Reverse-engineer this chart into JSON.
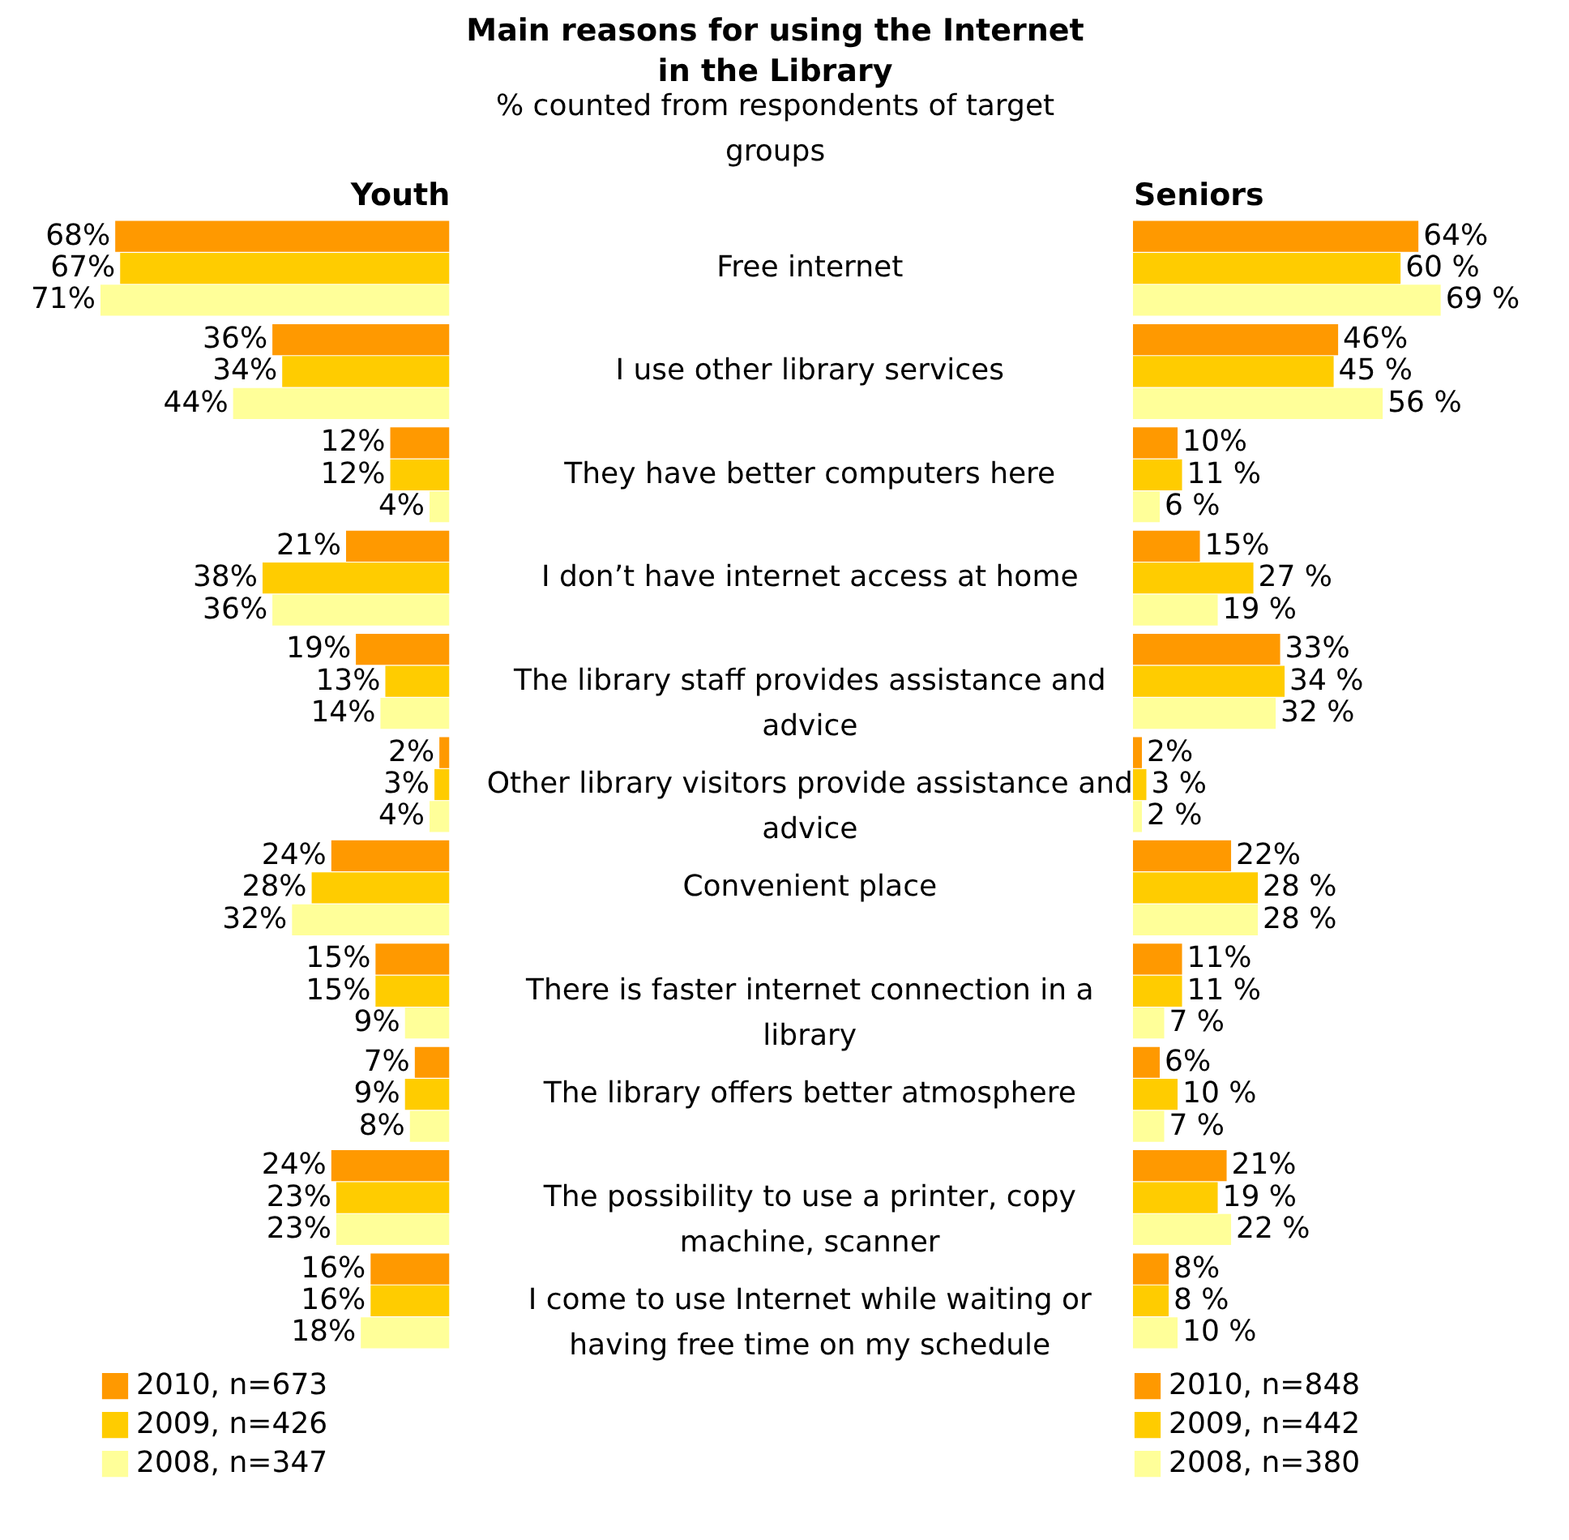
{
  "chart_data": [
    {
      "type": "bar",
      "orientation": "horizontal",
      "title": "Main reasons for using the Internet in the Library",
      "subtitle": "% counted from respondents of target groups",
      "xlabel": "Youth",
      "categories": [
        "Free internet",
        "I use other library services",
        "They have better computers here",
        "I don’t have internet access at home",
        "The library staff provides assistance and advice",
        "Other library visitors provide assistance and advice",
        "Convenient place",
        "There is faster internet connection in a library",
        "The library offers better atmosphere",
        "The possibility to use a printer, copy machine, scanner",
        "I come to use Internet while waiting or having free time on my schedule"
      ],
      "series": [
        {
          "name": "2010, n=673",
          "color": "#ff9900",
          "values": [
            68,
            36,
            12,
            21,
            19,
            2,
            24,
            15,
            7,
            24,
            16
          ],
          "value_labels": [
            "68%",
            "36%",
            "12%",
            "21%",
            "19%",
            "2%",
            "24%",
            "15%",
            "7%",
            "24%",
            "16%"
          ]
        },
        {
          "name": "2009, n=426",
          "color": "#ffcc00",
          "values": [
            67,
            34,
            12,
            38,
            13,
            3,
            28,
            15,
            9,
            23,
            16
          ],
          "value_labels": [
            "67%",
            "34%",
            "12%",
            "38%",
            "13%",
            "3%",
            "28%",
            "15%",
            "9%",
            "23%",
            "16%"
          ]
        },
        {
          "name": "2008, n=347",
          "color": "#ffff99",
          "values": [
            71,
            44,
            4,
            36,
            14,
            4,
            32,
            9,
            8,
            23,
            18
          ],
          "value_labels": [
            "71%",
            "44%",
            "4%",
            "36%",
            "14%",
            "4%",
            "32%",
            "9%",
            "8%",
            "23%",
            "18%"
          ]
        }
      ],
      "xlim": [
        71,
        0
      ],
      "legend": "bottom left",
      "tick_labels": "y"
    },
    {
      "type": "bar",
      "orientation": "horizontal",
      "xlabel": "Seniors",
      "categories": [
        null,
        null,
        null,
        null,
        null,
        null,
        null,
        null,
        null,
        null,
        null
      ],
      "series": [
        {
          "name": "2010, n=848",
          "color": "#ff9900",
          "values": [
            64,
            46,
            10,
            15,
            33,
            2,
            22,
            11,
            6,
            21,
            8
          ],
          "value_labels": [
            "64%",
            "46%",
            "10%",
            "15%",
            "33%",
            "2%",
            "22%",
            "11%",
            "6%",
            "21%",
            "8%"
          ]
        },
        {
          "name": "2009, n=442",
          "color": "#ffcc00",
          "values": [
            60,
            45,
            11,
            27,
            34,
            3,
            28,
            11,
            10,
            19,
            8
          ],
          "value_labels": [
            "60 %",
            "45 %",
            "11 %",
            "27 %",
            "34 %",
            "3 %",
            "28 %",
            "11 %",
            "10 %",
            "19 %",
            "8 %"
          ]
        },
        {
          "name": "2008, n=380",
          "color": "#ffff99",
          "values": [
            69,
            56,
            6,
            19,
            32,
            2,
            28,
            7,
            7,
            22,
            10
          ],
          "value_labels": [
            "69 %",
            "56 %",
            "6 %",
            "19 %",
            "32 %",
            "2 %",
            "28 %",
            "7 %",
            "7 %",
            "22 %",
            "10 %"
          ]
        }
      ],
      "xlim": [
        0,
        69
      ],
      "legend": "bottom left",
      "tick_labels": false
    }
  ]
}
